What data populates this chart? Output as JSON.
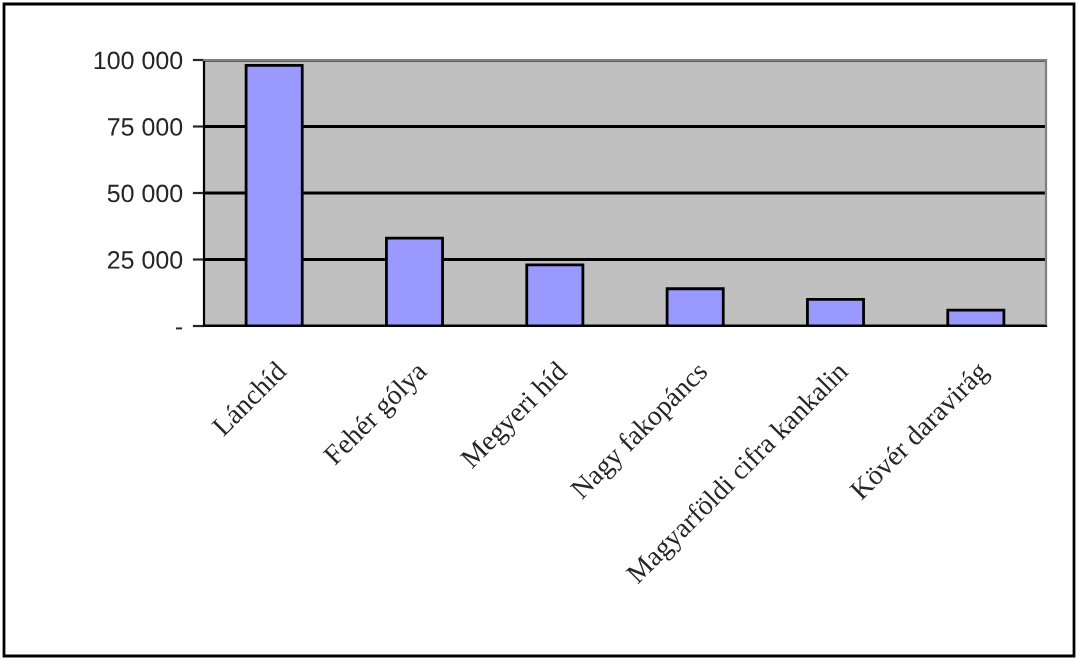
{
  "chart_data": {
    "type": "bar",
    "categories": [
      "Lánchíd",
      "Fehér gólya",
      "Megyeri híd",
      "Nagy fakopáncs",
      "Magyarföldi cifra kankalin",
      "Kövér daravirág"
    ],
    "values": [
      98000,
      33000,
      23000,
      14000,
      10000,
      6000
    ],
    "color": "#9999ff",
    "ylim": [
      0,
      100000
    ],
    "yticks": [
      {
        "value": 0,
        "label": "-"
      },
      {
        "value": 25000,
        "label": "25 000"
      },
      {
        "value": 50000,
        "label": "50 000"
      },
      {
        "value": 75000,
        "label": "75 000"
      },
      {
        "value": 100000,
        "label": "100 000"
      }
    ],
    "grid": "y",
    "legend": false
  }
}
